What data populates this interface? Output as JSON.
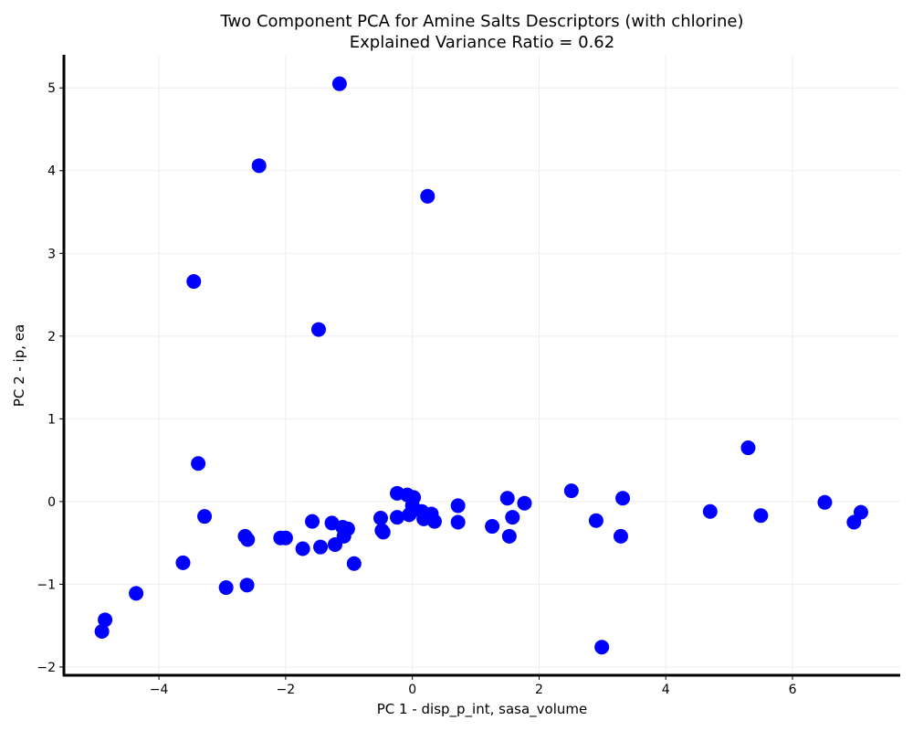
{
  "chart_data": {
    "type": "scatter",
    "title": "Two Component PCA for Amine Salts Descriptors (with chlorine)",
    "subtitle": "Explained Variance Ratio = 0.62",
    "xlabel": "PC 1 - disp_p_int, sasa_volume",
    "ylabel": "PC 2 - ip, ea",
    "xlim": [
      -5.5,
      7.7
    ],
    "ylim": [
      -2.1,
      5.4
    ],
    "xticks": [
      -4,
      -2,
      0,
      2,
      4,
      6
    ],
    "yticks": [
      -2,
      -1,
      0,
      1,
      2,
      3,
      4,
      5
    ],
    "xtick_labels": [
      "−4",
      "−2",
      "0",
      "2",
      "4",
      "6"
    ],
    "ytick_labels": [
      "−2",
      "−1",
      "0",
      "1",
      "2",
      "3",
      "4",
      "5"
    ],
    "grid": true,
    "marker_color": "#0000ff",
    "points": [
      {
        "x": -1.15,
        "y": 5.05
      },
      {
        "x": -2.42,
        "y": 4.06
      },
      {
        "x": 0.24,
        "y": 3.69
      },
      {
        "x": -3.45,
        "y": 2.66
      },
      {
        "x": -1.48,
        "y": 2.08
      },
      {
        "x": -3.38,
        "y": 0.46
      },
      {
        "x": -3.28,
        "y": -0.18
      },
      {
        "x": -3.62,
        "y": -0.74
      },
      {
        "x": -4.36,
        "y": -1.11
      },
      {
        "x": -4.85,
        "y": -1.43
      },
      {
        "x": -4.9,
        "y": -1.57
      },
      {
        "x": -2.94,
        "y": -1.04
      },
      {
        "x": -2.61,
        "y": -1.01
      },
      {
        "x": -2.64,
        "y": -0.42
      },
      {
        "x": -2.6,
        "y": -0.46
      },
      {
        "x": -2.08,
        "y": -0.44
      },
      {
        "x": -2.0,
        "y": -0.44
      },
      {
        "x": -1.73,
        "y": -0.57
      },
      {
        "x": -1.58,
        "y": -0.24
      },
      {
        "x": -1.45,
        "y": -0.55
      },
      {
        "x": -1.27,
        "y": -0.26
      },
      {
        "x": -1.22,
        "y": -0.52
      },
      {
        "x": -1.1,
        "y": -0.31
      },
      {
        "x": -1.08,
        "y": -0.42
      },
      {
        "x": -1.02,
        "y": -0.33
      },
      {
        "x": -0.92,
        "y": -0.75
      },
      {
        "x": -0.5,
        "y": -0.2
      },
      {
        "x": -0.48,
        "y": -0.35
      },
      {
        "x": -0.46,
        "y": -0.37
      },
      {
        "x": -0.24,
        "y": 0.1
      },
      {
        "x": -0.24,
        "y": -0.19
      },
      {
        "x": -0.08,
        "y": 0.08
      },
      {
        "x": -0.05,
        "y": -0.16
      },
      {
        "x": 0.02,
        "y": 0.05
      },
      {
        "x": 0.0,
        "y": -0.05
      },
      {
        "x": 0.15,
        "y": -0.12
      },
      {
        "x": 0.18,
        "y": -0.21
      },
      {
        "x": 0.3,
        "y": -0.15
      },
      {
        "x": 0.35,
        "y": -0.24
      },
      {
        "x": 0.72,
        "y": -0.05
      },
      {
        "x": 0.72,
        "y": -0.25
      },
      {
        "x": 1.26,
        "y": -0.3
      },
      {
        "x": 1.5,
        "y": 0.04
      },
      {
        "x": 1.53,
        "y": -0.42
      },
      {
        "x": 1.58,
        "y": -0.19
      },
      {
        "x": 1.77,
        "y": -0.02
      },
      {
        "x": 2.51,
        "y": 0.13
      },
      {
        "x": 2.9,
        "y": -0.23
      },
      {
        "x": 3.29,
        "y": -0.42
      },
      {
        "x": 3.32,
        "y": 0.04
      },
      {
        "x": 2.99,
        "y": -1.76
      },
      {
        "x": 4.7,
        "y": -0.12
      },
      {
        "x": 5.3,
        "y": 0.65
      },
      {
        "x": 5.5,
        "y": -0.17
      },
      {
        "x": 6.51,
        "y": -0.01
      },
      {
        "x": 6.97,
        "y": -0.25
      },
      {
        "x": 7.08,
        "y": -0.13
      }
    ]
  }
}
